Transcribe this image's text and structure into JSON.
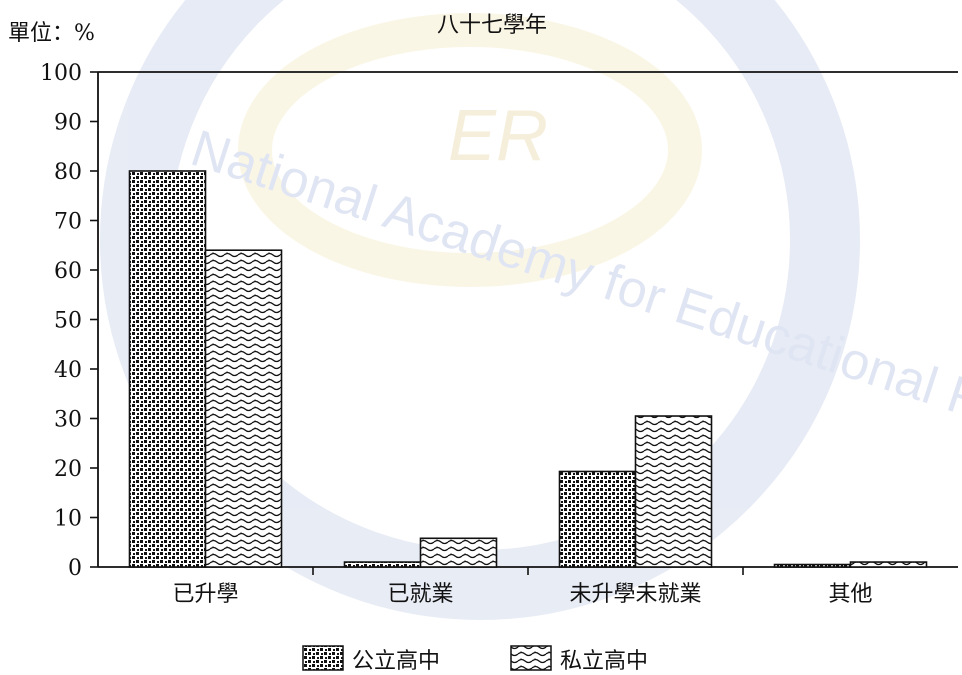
{
  "watermark": {
    "logo_text": "ER",
    "arc_text": "National Academy for Educational Research"
  },
  "chart_data": {
    "type": "bar",
    "title": "八十七學年",
    "unit_label": "單位：%",
    "categories": [
      "已升學",
      "已就業",
      "未升學未就業",
      "其他"
    ],
    "series": [
      {
        "name": "公立高中",
        "pattern": "dots",
        "values": [
          80,
          1,
          19.3,
          0.5
        ]
      },
      {
        "name": "私立高中",
        "pattern": "waves",
        "values": [
          64,
          5.8,
          30.5,
          1.0
        ]
      }
    ],
    "ylim": [
      0,
      100
    ],
    "yticks": [
      0,
      10,
      20,
      30,
      40,
      50,
      60,
      70,
      80,
      90,
      100
    ],
    "grid": false,
    "legend_position": "bottom-center"
  }
}
